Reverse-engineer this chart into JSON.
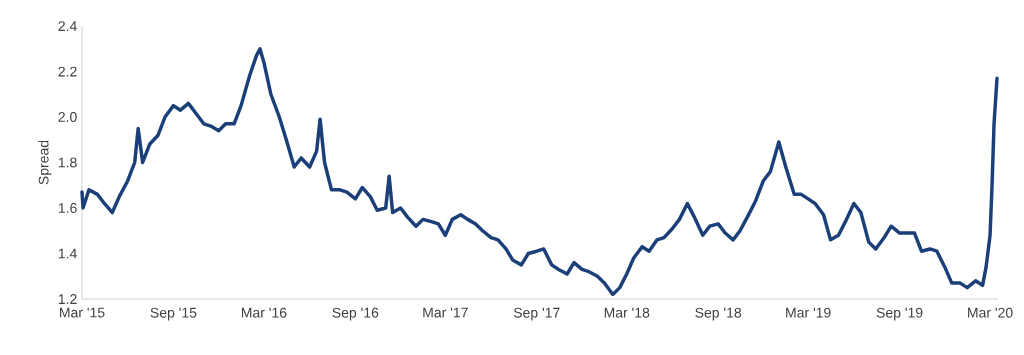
{
  "chart_data": {
    "type": "line",
    "ylabel": "Spread",
    "x": [
      "2015-03-01",
      "2015-03-03",
      "2015-03-15",
      "2015-04-01",
      "2015-04-15",
      "2015-05-01",
      "2015-05-15",
      "2015-06-01",
      "2015-06-15",
      "2015-06-22",
      "2015-07-01",
      "2015-07-15",
      "2015-08-01",
      "2015-08-15",
      "2015-09-01",
      "2015-09-15",
      "2015-10-01",
      "2015-10-15",
      "2015-11-01",
      "2015-11-15",
      "2015-12-01",
      "2015-12-15",
      "2016-01-01",
      "2016-01-15",
      "2016-02-01",
      "2016-02-15",
      "2016-02-22",
      "2016-03-01",
      "2016-03-15",
      "2016-04-01",
      "2016-04-15",
      "2016-05-01",
      "2016-05-15",
      "2016-06-01",
      "2016-06-15",
      "2016-06-22",
      "2016-07-01",
      "2016-07-15",
      "2016-08-01",
      "2016-08-15",
      "2016-09-01",
      "2016-09-15",
      "2016-10-01",
      "2016-10-15",
      "2016-11-01",
      "2016-11-08",
      "2016-11-15",
      "2016-12-01",
      "2016-12-15",
      "2017-01-01",
      "2017-01-15",
      "2017-02-01",
      "2017-02-15",
      "2017-03-01",
      "2017-03-15",
      "2017-04-01",
      "2017-04-15",
      "2017-05-01",
      "2017-05-15",
      "2017-06-01",
      "2017-06-15",
      "2017-07-01",
      "2017-07-15",
      "2017-08-01",
      "2017-08-15",
      "2017-09-01",
      "2017-09-15",
      "2017-10-01",
      "2017-10-15",
      "2017-11-01",
      "2017-11-15",
      "2017-12-01",
      "2017-12-15",
      "2018-01-01",
      "2018-01-15",
      "2018-02-01",
      "2018-02-15",
      "2018-03-01",
      "2018-03-15",
      "2018-04-01",
      "2018-04-15",
      "2018-05-01",
      "2018-05-15",
      "2018-06-01",
      "2018-06-15",
      "2018-07-01",
      "2018-07-15",
      "2018-08-01",
      "2018-08-15",
      "2018-09-01",
      "2018-09-15",
      "2018-10-01",
      "2018-10-15",
      "2018-11-01",
      "2018-11-15",
      "2018-12-01",
      "2018-12-15",
      "2019-01-01",
      "2019-01-15",
      "2019-02-01",
      "2019-02-15",
      "2019-03-01",
      "2019-03-15",
      "2019-04-01",
      "2019-04-15",
      "2019-05-01",
      "2019-05-15",
      "2019-06-01",
      "2019-06-15",
      "2019-07-01",
      "2019-07-15",
      "2019-08-01",
      "2019-08-15",
      "2019-09-01",
      "2019-09-15",
      "2019-10-01",
      "2019-10-15",
      "2019-11-01",
      "2019-11-15",
      "2019-12-01",
      "2019-12-15",
      "2020-01-01",
      "2020-01-15",
      "2020-02-01",
      "2020-02-15",
      "2020-02-22",
      "2020-03-01",
      "2020-03-05",
      "2020-03-09",
      "2020-03-15"
    ],
    "series": [
      {
        "color": "#1b3f78",
        "values": [
          1.67,
          1.6,
          1.68,
          1.66,
          1.62,
          1.58,
          1.65,
          1.72,
          1.8,
          1.95,
          1.8,
          1.88,
          1.92,
          2.0,
          2.05,
          2.03,
          2.06,
          2.02,
          1.97,
          1.96,
          1.94,
          1.97,
          1.97,
          2.05,
          2.18,
          2.27,
          2.3,
          2.24,
          2.1,
          2.0,
          1.9,
          1.78,
          1.82,
          1.78,
          1.85,
          1.99,
          1.8,
          1.68,
          1.68,
          1.67,
          1.64,
          1.69,
          1.65,
          1.59,
          1.6,
          1.74,
          1.58,
          1.6,
          1.56,
          1.52,
          1.55,
          1.54,
          1.53,
          1.48,
          1.55,
          1.57,
          1.55,
          1.53,
          1.5,
          1.47,
          1.46,
          1.42,
          1.37,
          1.35,
          1.4,
          1.41,
          1.42,
          1.35,
          1.33,
          1.31,
          1.36,
          1.33,
          1.32,
          1.3,
          1.27,
          1.22,
          1.25,
          1.31,
          1.38,
          1.43,
          1.41,
          1.46,
          1.47,
          1.51,
          1.55,
          1.62,
          1.56,
          1.48,
          1.52,
          1.53,
          1.49,
          1.46,
          1.5,
          1.57,
          1.63,
          1.72,
          1.76,
          1.89,
          1.78,
          1.66,
          1.66,
          1.64,
          1.62,
          1.57,
          1.46,
          1.48,
          1.54,
          1.62,
          1.58,
          1.45,
          1.42,
          1.47,
          1.52,
          1.49,
          1.49,
          1.49,
          1.41,
          1.42,
          1.41,
          1.34,
          1.27,
          1.27,
          1.25,
          1.28,
          1.26,
          1.34,
          1.48,
          1.7,
          1.97,
          2.17
        ]
      }
    ],
    "xlim": [
      "2015-03-01",
      "2020-03-17"
    ],
    "ylim": [
      1.2,
      2.4
    ],
    "xticks": [
      {
        "value": "2015-03-01",
        "label": "Mar '15"
      },
      {
        "value": "2015-09-01",
        "label": "Sep '15"
      },
      {
        "value": "2016-03-01",
        "label": "Mar '16"
      },
      {
        "value": "2016-09-01",
        "label": "Sep '16"
      },
      {
        "value": "2017-03-01",
        "label": "Mar '17"
      },
      {
        "value": "2017-09-01",
        "label": "Sep '17"
      },
      {
        "value": "2018-03-01",
        "label": "Mar '18"
      },
      {
        "value": "2018-09-01",
        "label": "Sep '18"
      },
      {
        "value": "2019-03-01",
        "label": "Mar '19"
      },
      {
        "value": "2019-09-01",
        "label": "Sep '19"
      },
      {
        "value": "2020-03-01",
        "label": "Mar '20"
      }
    ],
    "yticks": [
      {
        "value": 1.2,
        "label": "1.2"
      },
      {
        "value": 1.4,
        "label": "1.4"
      },
      {
        "value": 1.6,
        "label": "1.6"
      },
      {
        "value": 1.8,
        "label": "1.8"
      },
      {
        "value": 2.0,
        "label": "2.0"
      },
      {
        "value": 2.2,
        "label": "2.2"
      },
      {
        "value": 2.4,
        "label": "2.4"
      }
    ],
    "marker": "none",
    "line_style": "solid"
  }
}
